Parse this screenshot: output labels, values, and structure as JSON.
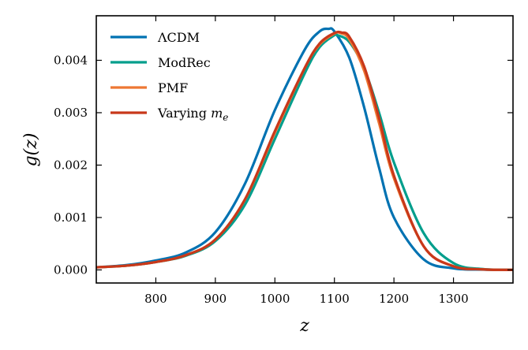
{
  "chart_data": {
    "type": "line",
    "xlabel": "z",
    "ylabel": "g(z)",
    "xlim": [
      700,
      1400
    ],
    "ylim": [
      -0.00025,
      0.00485
    ],
    "xticks": [
      800,
      900,
      1000,
      1100,
      1200,
      1300
    ],
    "yticks": [
      0.0,
      0.001,
      0.002,
      0.003,
      0.004
    ],
    "xtick_labels": [
      "800",
      "900",
      "1000",
      "1100",
      "1200",
      "1300"
    ],
    "ytick_labels": [
      "0.000",
      "0.001",
      "0.002",
      "0.003",
      "0.004"
    ],
    "grid": false,
    "legend_position": "top-left",
    "series": [
      {
        "name": "ΛCDM",
        "color": "#0072B2",
        "x": [
          700,
          750,
          800,
          850,
          900,
          950,
          1000,
          1050,
          1075,
          1090,
          1100,
          1125,
          1150,
          1175,
          1200,
          1250,
          1300,
          1350,
          1400
        ],
        "y": [
          5e-05,
          9e-05,
          0.00018,
          0.00033,
          0.00072,
          0.00165,
          0.00305,
          0.0042,
          0.00455,
          0.0046,
          0.00455,
          0.00405,
          0.0031,
          0.00195,
          0.001,
          0.0002,
          3e-05,
          5e-06,
          0.0
        ]
      },
      {
        "name": "ModRec",
        "color": "#009E8C",
        "x": [
          700,
          750,
          800,
          850,
          900,
          950,
          1000,
          1050,
          1075,
          1100,
          1105,
          1125,
          1150,
          1175,
          1200,
          1250,
          1300,
          1350,
          1400
        ],
        "y": [
          5e-05,
          8e-05,
          0.00015,
          0.00027,
          0.00055,
          0.00125,
          0.0025,
          0.00375,
          0.00425,
          0.00448,
          0.00448,
          0.00435,
          0.00385,
          0.003,
          0.00205,
          0.0007,
          0.00013,
          1.5e-05,
          0.0
        ]
      },
      {
        "name": "PMF",
        "color": "#EE7733",
        "x": [
          700,
          750,
          800,
          850,
          900,
          950,
          1000,
          1050,
          1075,
          1100,
          1110,
          1125,
          1150,
          1175,
          1200,
          1250,
          1300,
          1350,
          1400
        ],
        "y": [
          5e-05,
          8e-05,
          0.00015,
          0.00028,
          0.00058,
          0.00135,
          0.00262,
          0.00385,
          0.0043,
          0.00451,
          0.00452,
          0.0044,
          0.0038,
          0.0028,
          0.00175,
          0.00045,
          7e-05,
          1e-05,
          0.0
        ]
      },
      {
        "name": "Varying m_e",
        "color": "#C8381A",
        "x": [
          700,
          750,
          800,
          850,
          900,
          950,
          1000,
          1050,
          1075,
          1100,
          1112,
          1125,
          1150,
          1175,
          1200,
          1250,
          1300,
          1350,
          1400
        ],
        "y": [
          5e-05,
          8e-05,
          0.00015,
          0.00028,
          0.00058,
          0.00135,
          0.00265,
          0.00385,
          0.00432,
          0.00452,
          0.00453,
          0.00445,
          0.00388,
          0.0029,
          0.0018,
          0.00045,
          7e-05,
          1e-05,
          0.0
        ]
      }
    ],
    "legend": [
      {
        "text": "ΛCDM"
      },
      {
        "text": "ModRec"
      },
      {
        "text": "PMF"
      },
      {
        "text": "Varying ",
        "math": "m",
        "sub": "e"
      }
    ]
  }
}
